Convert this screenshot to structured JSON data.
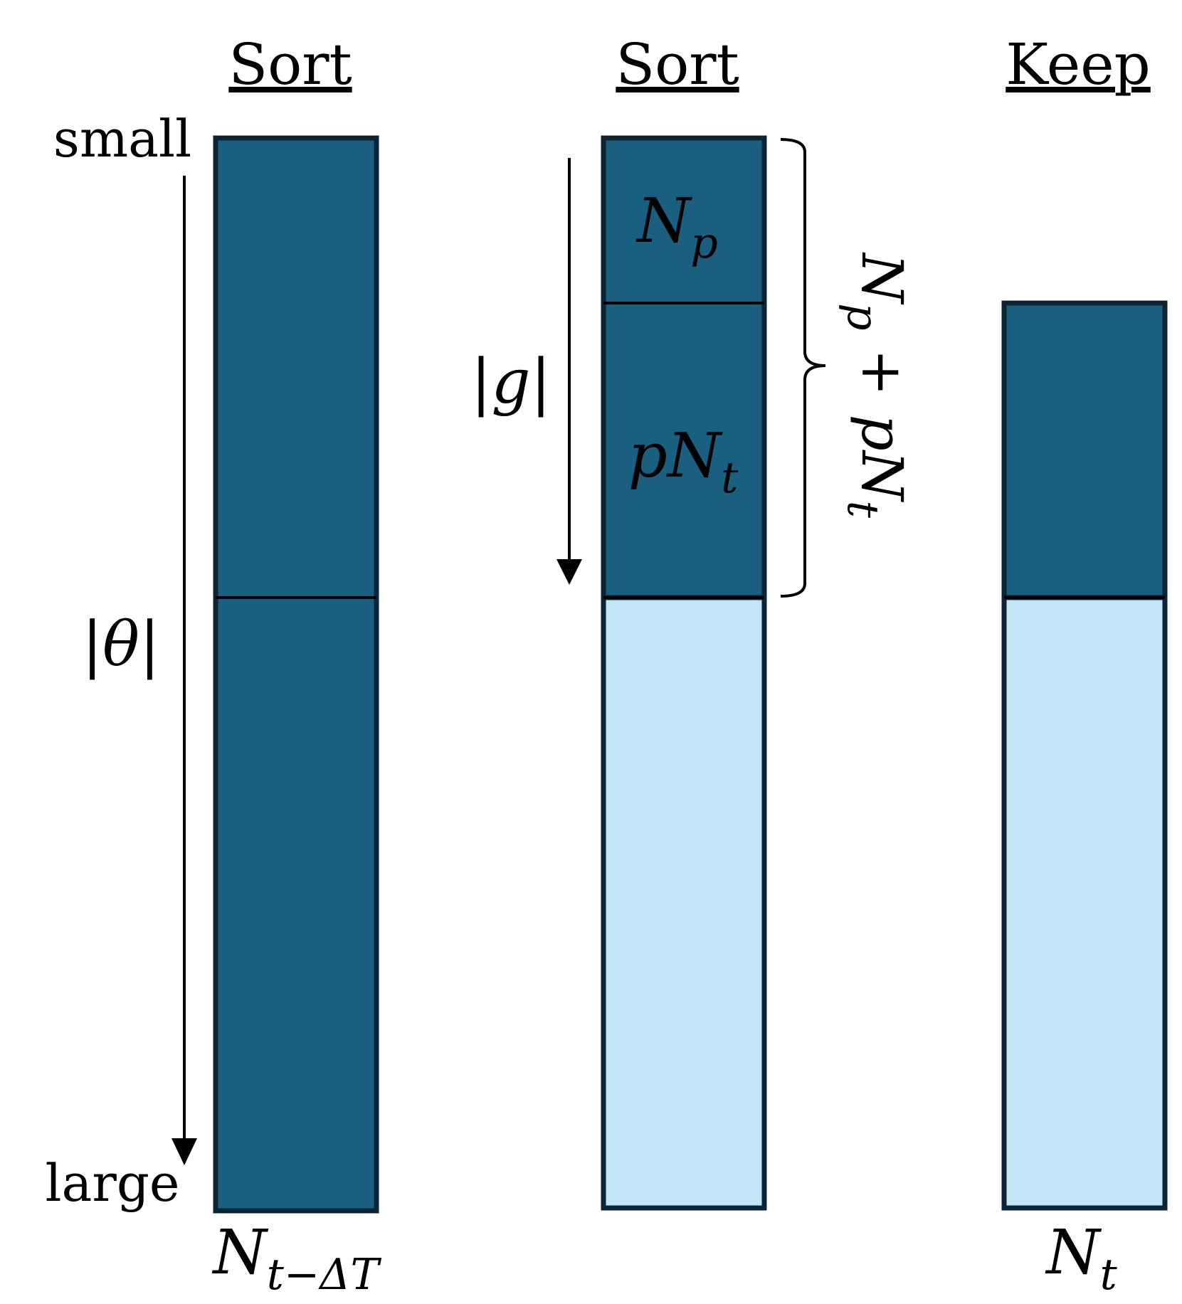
{
  "headers": {
    "col1": "Sort",
    "col2": "Sort",
    "col3": "Keep"
  },
  "axis": {
    "top": "small",
    "bottom": "large",
    "theta_open": "|",
    "theta_var": "θ",
    "theta_close": "|",
    "g_open": "|",
    "g_var": "g",
    "g_close": "|"
  },
  "labels": {
    "col1_bottom_base": "N",
    "col1_bottom_sub": "t−ΔT",
    "col2_top_base": "N",
    "col2_top_sub": "p",
    "col2_mid_prefix": "p",
    "col2_mid_base": "N",
    "col2_mid_sub": "t",
    "brace_a": "N",
    "brace_a_sub": "p",
    "brace_plus": " + ",
    "brace_b_prefix": "p",
    "brace_b": "N",
    "brace_b_sub": "t",
    "col3_bottom_base": "N",
    "col3_bottom_sub": "t"
  },
  "colors": {
    "dark": "#185f80",
    "light": "#c2e4f4",
    "outline": "#0b2535"
  }
}
